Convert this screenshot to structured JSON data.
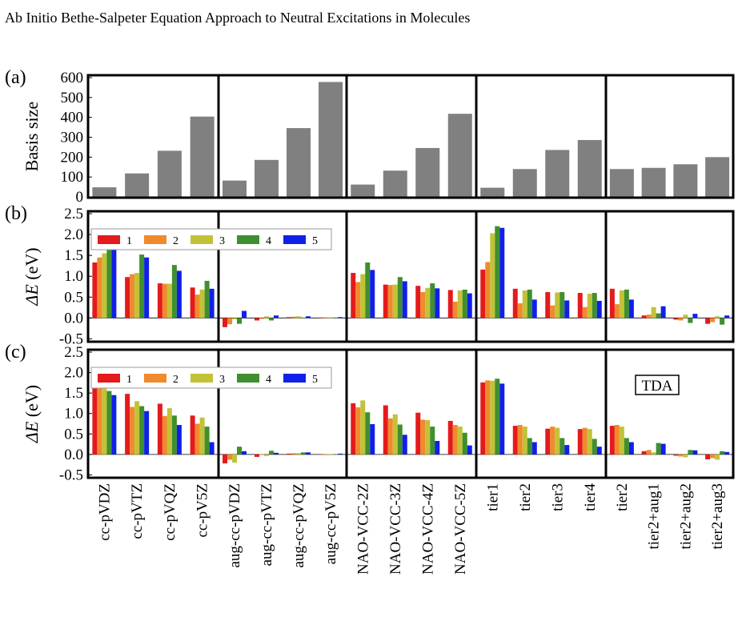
{
  "page": {
    "header": "Ab Initio Bethe-Salpeter Equation Approach to Neutral Excitations in Molecules"
  },
  "chart_data": {
    "type": "bar",
    "groups": [
      {
        "name": "cc",
        "categories": [
          "cc-pVDZ",
          "cc-pVTZ",
          "cc-pVQZ",
          "cc-pV5Z"
        ]
      },
      {
        "name": "aug",
        "categories": [
          "aug-cc-pVDZ",
          "aug-cc-pVTZ",
          "aug-cc-pVQZ",
          "aug-cc-pV5Z"
        ]
      },
      {
        "name": "nao",
        "categories": [
          "NAO-VCC-2Z",
          "NAO-VCC-3Z",
          "NAO-VCC-4Z",
          "NAO-VCC-5Z"
        ]
      },
      {
        "name": "tier",
        "categories": [
          "tier1",
          "tier2",
          "tier3",
          "tier4"
        ]
      },
      {
        "name": "taug",
        "categories": [
          "tier2",
          "tier2+aug1",
          "tier2+aug2",
          "tier2+aug3"
        ]
      }
    ],
    "series_colors": [
      "#e41a1c",
      "#f08a2c",
      "#c2c238",
      "#3f8f2f",
      "#1020e8"
    ],
    "panels": [
      {
        "label": "(a)",
        "ylabel": "Basis size",
        "ylim": [
          0,
          600
        ],
        "yticks": [
          0,
          100,
          200,
          300,
          400,
          500,
          600
        ],
        "bar_color": "#808080",
        "values": [
          [
            48,
            118,
            232,
            404
          ],
          [
            82,
            186,
            346,
            578
          ],
          [
            62,
            132,
            246,
            418
          ],
          [
            46,
            140,
            236,
            286
          ],
          [
            140,
            146,
            164,
            200
          ]
        ]
      },
      {
        "label": "(b)",
        "ylabel_main": "ΔE",
        "ylabel_unit": "(eV)",
        "ylim": [
          -0.55,
          2.5
        ],
        "yticks": [
          -0.5,
          0.0,
          0.5,
          1.0,
          1.5,
          2.0,
          2.5
        ],
        "legend": {
          "placement": "top-left",
          "entries": [
            "1",
            "2",
            "3",
            "4",
            "5"
          ]
        },
        "values": [
          [
            [
              1.33,
              1.45,
              1.55,
              1.92,
              1.92
            ],
            [
              0.98,
              1.05,
              1.08,
              1.52,
              1.45
            ],
            [
              0.83,
              0.82,
              0.82,
              1.27,
              1.13
            ],
            [
              0.73,
              0.56,
              0.68,
              0.89,
              0.7
            ]
          ],
          [
            [
              -0.22,
              -0.15,
              -0.03,
              -0.14,
              0.17
            ],
            [
              -0.06,
              -0.02,
              0.04,
              -0.06,
              0.06
            ],
            [
              0.02,
              0.03,
              0.04,
              0.01,
              0.04
            ],
            [
              0.01,
              0.01,
              0.01,
              0.01,
              0.02
            ]
          ],
          [
            [
              1.08,
              0.86,
              1.05,
              1.33,
              1.15
            ],
            [
              0.8,
              0.79,
              0.8,
              0.98,
              0.88
            ],
            [
              0.77,
              0.62,
              0.72,
              0.83,
              0.71
            ],
            [
              0.67,
              0.39,
              0.66,
              0.68,
              0.59
            ]
          ],
          [
            [
              1.16,
              1.34,
              2.03,
              2.2,
              2.16
            ],
            [
              0.7,
              0.35,
              0.66,
              0.68,
              0.44
            ],
            [
              0.62,
              0.3,
              0.61,
              0.62,
              0.42
            ],
            [
              0.6,
              0.26,
              0.58,
              0.6,
              0.41
            ]
          ],
          [
            [
              0.7,
              0.33,
              0.66,
              0.68,
              0.44
            ],
            [
              0.06,
              0.08,
              0.26,
              0.11,
              0.28
            ],
            [
              -0.04,
              -0.06,
              0.08,
              -0.12,
              0.1
            ],
            [
              -0.14,
              -0.1,
              0.04,
              -0.16,
              0.06
            ]
          ]
        ]
      },
      {
        "label": "(c)",
        "ylabel_main": "ΔE",
        "ylabel_unit": "(eV)",
        "ylim": [
          -0.55,
          2.5
        ],
        "yticks": [
          -0.5,
          0.0,
          0.5,
          1.0,
          1.5,
          2.0,
          2.5
        ],
        "legend": {
          "placement": "top-left",
          "entries": [
            "1",
            "2",
            "3",
            "4",
            "5"
          ]
        },
        "annotation": "TDA",
        "values": [
          [
            [
              1.88,
              1.65,
              1.72,
              1.55,
              1.45
            ],
            [
              1.48,
              1.16,
              1.3,
              1.18,
              1.06
            ],
            [
              1.24,
              0.94,
              1.13,
              0.95,
              0.72
            ],
            [
              0.95,
              0.75,
              0.9,
              0.68,
              0.3
            ]
          ],
          [
            [
              -0.22,
              -0.13,
              -0.2,
              0.19,
              0.08
            ],
            [
              -0.06,
              0.01,
              -0.04,
              0.09,
              0.04
            ],
            [
              0.02,
              0.03,
              0.03,
              0.05,
              0.05
            ],
            [
              0.01,
              0.01,
              0.01,
              0.01,
              0.02
            ]
          ],
          [
            [
              1.25,
              1.15,
              1.32,
              1.03,
              0.74
            ],
            [
              1.2,
              0.88,
              0.98,
              0.73,
              0.48
            ],
            [
              1.02,
              0.85,
              0.84,
              0.68,
              0.33
            ],
            [
              0.82,
              0.72,
              0.68,
              0.53,
              0.22
            ]
          ],
          [
            [
              1.76,
              1.81,
              1.8,
              1.85,
              1.73
            ],
            [
              0.7,
              0.72,
              0.68,
              0.4,
              0.3
            ],
            [
              0.63,
              0.68,
              0.65,
              0.4,
              0.23
            ],
            [
              0.62,
              0.65,
              0.62,
              0.38,
              0.19
            ]
          ],
          [
            [
              0.7,
              0.72,
              0.68,
              0.4,
              0.3
            ],
            [
              0.08,
              0.11,
              0.05,
              0.28,
              0.26
            ],
            [
              -0.03,
              -0.05,
              -0.07,
              0.11,
              0.1
            ],
            [
              -0.12,
              -0.09,
              -0.13,
              0.08,
              0.06
            ]
          ]
        ]
      }
    ]
  }
}
